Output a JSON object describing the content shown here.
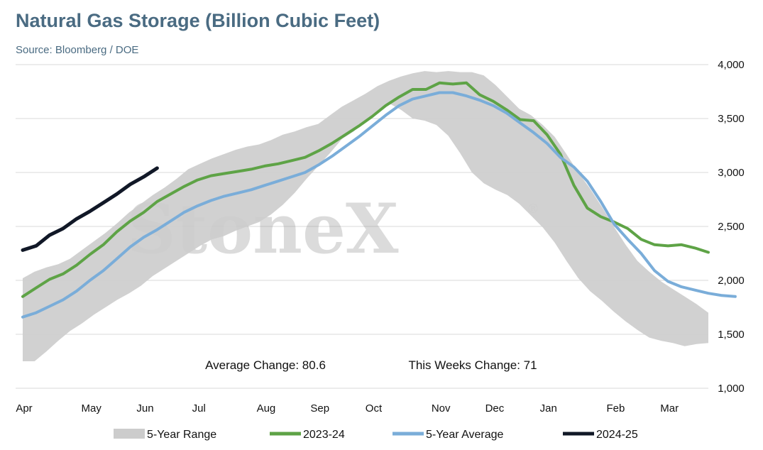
{
  "chart_data": {
    "type": "line",
    "title": "Natural Gas Storage (Billion Cubic Feet)",
    "subtitle": "Source: Bloomberg / DOE",
    "watermark": "StoneX",
    "watermark_mark": "®",
    "x_tick_labels": [
      "Apr",
      "May",
      "Jun",
      "Jul",
      "Aug",
      "Sep",
      "Oct",
      "Nov",
      "Dec",
      "Jan",
      "Feb",
      "Mar"
    ],
    "x_tick_weeks": [
      0,
      5,
      9,
      13,
      18,
      22,
      26,
      31,
      35,
      39,
      44,
      48
    ],
    "y_ticks": [
      1000,
      1500,
      2000,
      2500,
      3000,
      3500,
      4000
    ],
    "y_tick_labels": [
      "1,000",
      "1,500",
      "2,000",
      "2,500",
      "3,000",
      "3,500",
      "4,000"
    ],
    "ylim": [
      1000,
      4000
    ],
    "xlim": [
      0,
      51
    ],
    "grid": true,
    "legend_position": "bottom",
    "annotations": {
      "average_change": "Average Change: 80.6",
      "this_weeks_change": "This Weeks Change: 71"
    },
    "range": {
      "name": "5-Year Range",
      "color": "#cccccc",
      "upper": [
        2020,
        2080,
        2120,
        2150,
        2200,
        2280,
        2360,
        2440,
        2530,
        2630,
        2710,
        2790,
        2860,
        2940,
        3030,
        3080,
        3130,
        3170,
        3210,
        3240,
        3260,
        3300,
        3350,
        3380,
        3420,
        3450,
        3530,
        3610,
        3670,
        3730,
        3800,
        3850,
        3890,
        3920,
        3940,
        3930,
        3940,
        3930,
        3930,
        3900,
        3810,
        3700,
        3590,
        3530,
        3440,
        3330,
        3170,
        3000,
        2850,
        2680,
        2500,
        2330,
        2180,
        2080,
        1990,
        1920,
        1850,
        1780,
        1700
      ],
      "lower": [
        1250,
        1250,
        1340,
        1440,
        1530,
        1600,
        1680,
        1750,
        1820,
        1880,
        1950,
        2040,
        2110,
        2180,
        2250,
        2320,
        2380,
        2410,
        2460,
        2500,
        2540,
        2610,
        2700,
        2810,
        2940,
        3060,
        3180,
        3310,
        3380,
        3480,
        3560,
        3640,
        3580,
        3500,
        3480,
        3440,
        3340,
        3180,
        3000,
        2900,
        2840,
        2790,
        2710,
        2600,
        2490,
        2350,
        2180,
        2020,
        1900,
        1810,
        1710,
        1620,
        1540,
        1470,
        1440,
        1420,
        1390,
        1410,
        1420
      ]
    },
    "series": [
      {
        "name": "2023-24",
        "color": "#5ea346",
        "values": [
          1850,
          1930,
          2010,
          2060,
          2140,
          2240,
          2330,
          2450,
          2550,
          2630,
          2730,
          2800,
          2870,
          2930,
          2970,
          2990,
          3010,
          3030,
          3060,
          3080,
          3110,
          3140,
          3200,
          3270,
          3350,
          3430,
          3520,
          3620,
          3700,
          3770,
          3770,
          3830,
          3820,
          3830,
          3720,
          3660,
          3580,
          3490,
          3480,
          3350,
          3170,
          2880,
          2670,
          2590,
          2540,
          2480,
          2380,
          2330,
          2320,
          2330,
          2300,
          2260
        ]
      },
      {
        "name": "5-Year Average",
        "color": "#7aadd9",
        "values": [
          1660,
          1700,
          1760,
          1820,
          1900,
          2000,
          2090,
          2200,
          2310,
          2400,
          2470,
          2550,
          2630,
          2690,
          2740,
          2780,
          2810,
          2840,
          2880,
          2920,
          2960,
          3000,
          3070,
          3150,
          3240,
          3330,
          3430,
          3530,
          3620,
          3680,
          3710,
          3740,
          3740,
          3710,
          3670,
          3620,
          3550,
          3460,
          3370,
          3270,
          3140,
          3050,
          2920,
          2730,
          2520,
          2380,
          2250,
          2090,
          1990,
          1940,
          1910,
          1880,
          1860,
          1850
        ]
      },
      {
        "name": "2024-25",
        "color": "#111827",
        "values": [
          2280,
          2320,
          2420,
          2480,
          2570,
          2640,
          2720,
          2800,
          2890,
          2960,
          3040
        ]
      }
    ]
  }
}
